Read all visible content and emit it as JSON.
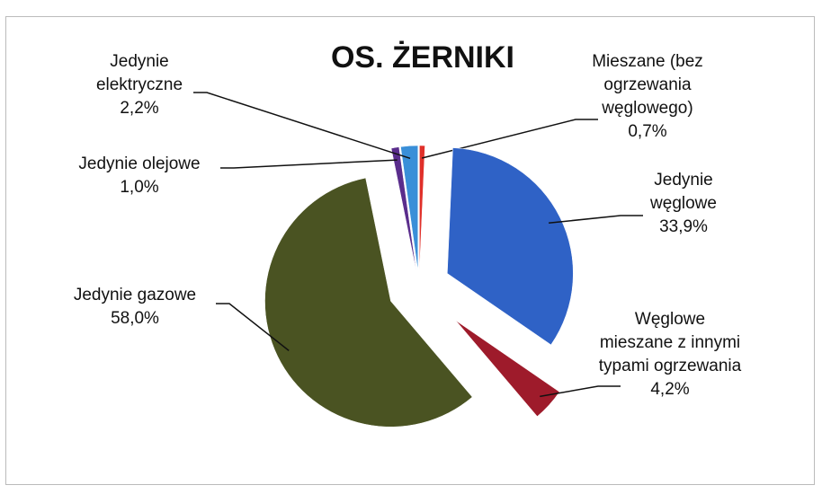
{
  "chart_data": {
    "type": "pie",
    "title": "OS. ŻERNIKI",
    "categories": [
      "Mieszane (bez ogrzewania węglowego)",
      "Jedynie węglowe",
      "Węglowe mieszane z innymi typami ogrzewania",
      "Jedynie gazowe",
      "Jedynie olejowe",
      "Jedynie elektryczne"
    ],
    "values": [
      0.7,
      33.9,
      4.2,
      58.0,
      1.0,
      2.2
    ],
    "value_labels": [
      "0,7%",
      "33,9%",
      "4,2%",
      "58,0%",
      "1,0%",
      "2,2%"
    ],
    "colors": [
      "#e0302a",
      "#2f62c6",
      "#9e1b2b",
      "#4a5322",
      "#5a2d8c",
      "#3a8fd8"
    ]
  }
}
